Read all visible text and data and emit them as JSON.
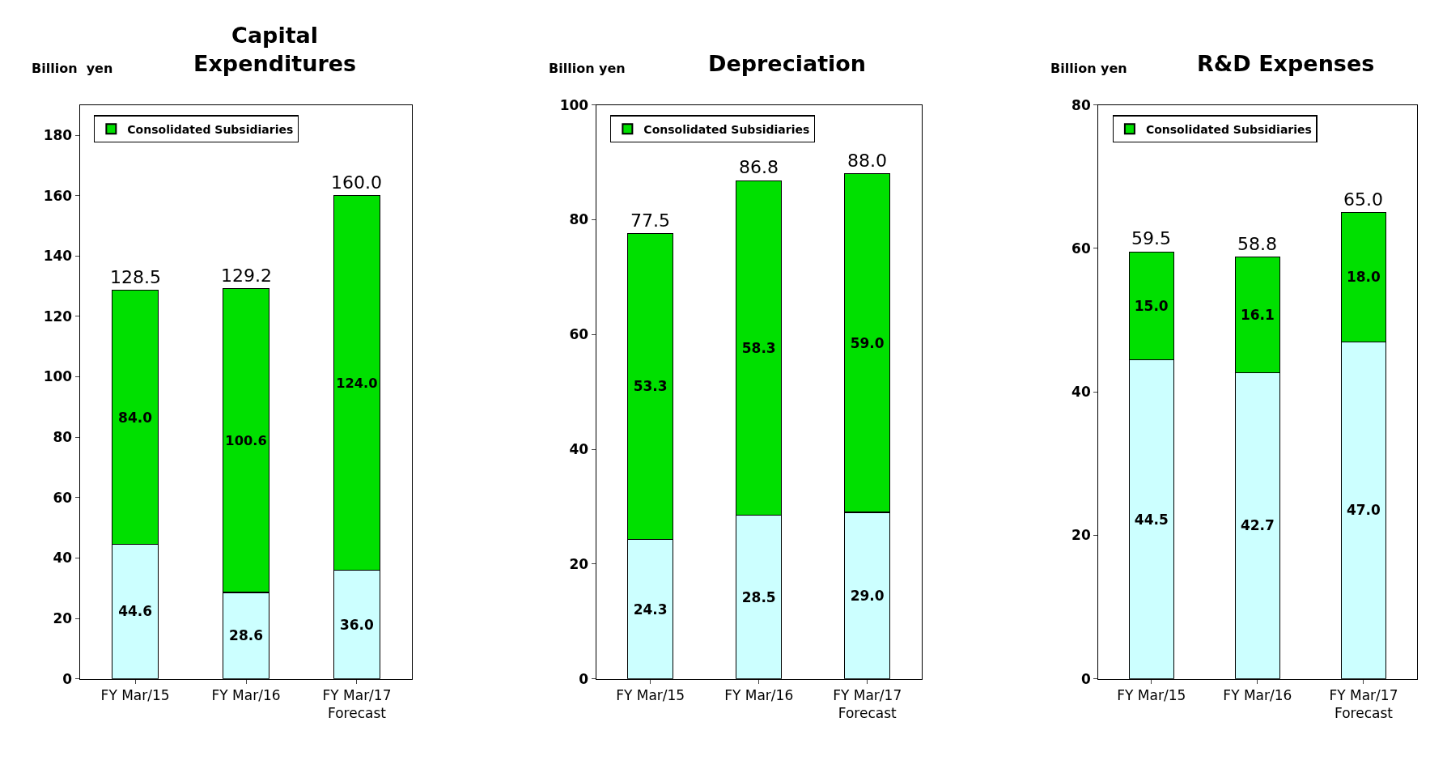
{
  "chart_data": [
    {
      "type": "bar",
      "title": "Capital\nExpenditures",
      "ylabel": "Billion  yen",
      "categories": [
        "FY Mar/15",
        "FY Mar/16",
        "FY Mar/17\nForecast"
      ],
      "stacked": true,
      "legend": "top left",
      "ylim": [
        0,
        190
      ],
      "yticks": [
        0,
        20,
        40,
        60,
        80,
        100,
        120,
        140,
        160,
        180
      ],
      "series": [
        {
          "color": "#ccffff",
          "values": [
            44.6,
            28.6,
            36.0
          ],
          "value_labels": [
            "44.6",
            "28.6",
            "36.0"
          ]
        },
        {
          "name": "Consolidated Subsidiaries",
          "color": "#00e000",
          "values": [
            84.0,
            100.6,
            124.0
          ],
          "value_labels": [
            "84.0",
            "100.6",
            "124.0"
          ]
        }
      ],
      "totals": [
        "128.5",
        "129.2",
        "160.0"
      ]
    },
    {
      "type": "bar",
      "title": "Depreciation",
      "ylabel": "Billion yen",
      "categories": [
        "FY Mar/15",
        "FY Mar/16",
        "FY Mar/17\nForecast"
      ],
      "stacked": true,
      "legend": "top left",
      "ylim": [
        0,
        100
      ],
      "yticks": [
        0,
        20,
        40,
        60,
        80,
        100
      ],
      "series": [
        {
          "color": "#ccffff",
          "values": [
            24.3,
            28.5,
            29.0
          ],
          "value_labels": [
            "24.3",
            "28.5",
            "29.0"
          ]
        },
        {
          "name": "Consolidated Subsidiaries",
          "color": "#00e000",
          "values": [
            53.3,
            58.3,
            59.0
          ],
          "value_labels": [
            "53.3",
            "58.3",
            "59.0"
          ]
        }
      ],
      "totals": [
        "77.5",
        "86.8",
        "88.0"
      ]
    },
    {
      "type": "bar",
      "title": "R&D Expenses",
      "ylabel": "Billion yen",
      "categories": [
        "FY Mar/15",
        "FY Mar/16",
        "FY Mar/17\nForecast"
      ],
      "stacked": true,
      "legend": "top left",
      "ylim": [
        0,
        80
      ],
      "yticks": [
        0,
        20,
        40,
        60,
        80
      ],
      "series": [
        {
          "color": "#ccffff",
          "values": [
            44.5,
            42.7,
            47.0
          ],
          "value_labels": [
            "44.5",
            "42.7",
            "47.0"
          ]
        },
        {
          "name": "Consolidated Subsidiaries",
          "color": "#00e000",
          "values": [
            15.0,
            16.1,
            18.0
          ],
          "value_labels": [
            "15.0",
            "16.1",
            "18.0"
          ]
        }
      ],
      "totals": [
        "59.5",
        "58.8",
        "65.0"
      ]
    }
  ]
}
